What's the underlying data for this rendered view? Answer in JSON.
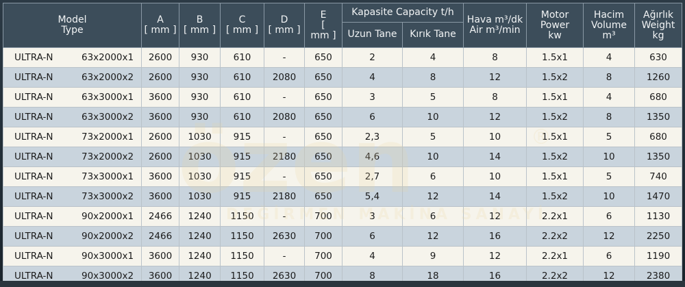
{
  "header": {
    "model_type": "Model\nType",
    "a": "A\n[ mm ]",
    "b": "B\n[ mm ]",
    "c": "C\n[ mm ]",
    "d": "D\n[ mm ]",
    "e": "E\n[\nmm ]",
    "capacity": "Kapasite Capacity t/h",
    "capacity_whole": "Uzun Tane",
    "capacity_broken": "Kırık Tane",
    "air": "Hava m³/dk\nAir m³/min",
    "motor": "Motor\nPower\nkw",
    "volume": "Hacim\nVolume\nm³",
    "weight": "Ağırlık\nWeight\nkg"
  },
  "rows": [
    {
      "model": "ULTRA-N",
      "type": "63x2000x1",
      "a": "2600",
      "b": "930",
      "c": "610",
      "d": "-",
      "e": "650",
      "cap1": "2",
      "cap2": "4",
      "air": "8",
      "motor": "1.5x1",
      "vol": "4",
      "weight": "630"
    },
    {
      "model": "ULTRA-N",
      "type": "63x2000x2",
      "a": "2600",
      "b": "930",
      "c": "610",
      "d": "2080",
      "e": "650",
      "cap1": "4",
      "cap2": "8",
      "air": "12",
      "motor": "1.5x2",
      "vol": "8",
      "weight": "1260"
    },
    {
      "model": "ULTRA-N",
      "type": "63x3000x1",
      "a": "3600",
      "b": "930",
      "c": "610",
      "d": "-",
      "e": "650",
      "cap1": "3",
      "cap2": "5",
      "air": "8",
      "motor": "1.5x1",
      "vol": "4",
      "weight": "680"
    },
    {
      "model": "ULTRA-N",
      "type": "63x3000x2",
      "a": "3600",
      "b": "930",
      "c": "610",
      "d": "2080",
      "e": "650",
      "cap1": "6",
      "cap2": "10",
      "air": "12",
      "motor": "1.5x2",
      "vol": "8",
      "weight": "1350"
    },
    {
      "model": "ULTRA-N",
      "type": "73x2000x1",
      "a": "2600",
      "b": "1030",
      "c": "915",
      "d": "-",
      "e": "650",
      "cap1": "2,3",
      "cap2": "5",
      "air": "10",
      "motor": "1.5x1",
      "vol": "5",
      "weight": "680"
    },
    {
      "model": "ULTRA-N",
      "type": "73x2000x2",
      "a": "2600",
      "b": "1030",
      "c": "915",
      "d": "2180",
      "e": "650",
      "cap1": "4,6",
      "cap2": "10",
      "air": "14",
      "motor": "1.5x2",
      "vol": "10",
      "weight": "1350"
    },
    {
      "model": "ULTRA-N",
      "type": "73x3000x1",
      "a": "3600",
      "b": "1030",
      "c": "915",
      "d": "-",
      "e": "650",
      "cap1": "2,7",
      "cap2": "6",
      "air": "10",
      "motor": "1.5x1",
      "vol": "5",
      "weight": "740"
    },
    {
      "model": "ULTRA-N",
      "type": "73x3000x2",
      "a": "3600",
      "b": "1030",
      "c": "915",
      "d": "2180",
      "e": "650",
      "cap1": "5,4",
      "cap2": "12",
      "air": "14",
      "motor": "1.5x2",
      "vol": "10",
      "weight": "1470"
    },
    {
      "model": "ULTRA-N",
      "type": "90x2000x1",
      "a": "2466",
      "b": "1240",
      "c": "1150",
      "d": "-",
      "e": "700",
      "cap1": "3",
      "cap2": "6",
      "air": "12",
      "motor": "2.2x1",
      "vol": "6",
      "weight": "1130"
    },
    {
      "model": "ULTRA-N",
      "type": "90x2000x2",
      "a": "2466",
      "b": "1240",
      "c": "1150",
      "d": "2630",
      "e": "700",
      "cap1": "6",
      "cap2": "12",
      "air": "16",
      "motor": "2.2x2",
      "vol": "12",
      "weight": "2250"
    },
    {
      "model": "ULTRA-N",
      "type": "90x3000x1",
      "a": "3600",
      "b": "1240",
      "c": "1150",
      "d": "-",
      "e": "700",
      "cap1": "4",
      "cap2": "9",
      "air": "12",
      "motor": "2.2x1",
      "vol": "6",
      "weight": "1190"
    },
    {
      "model": "ULTRA-N",
      "type": "90x3000x2",
      "a": "3600",
      "b": "1240",
      "c": "1150",
      "d": "2630",
      "e": "700",
      "cap1": "8",
      "cap2": "18",
      "air": "16",
      "motor": "2.2x2",
      "vol": "12",
      "weight": "2380"
    }
  ],
  "watermark": {
    "logo_text": "özen",
    "tagline": "DEĞİRMEN MAKİNA SANAYİ",
    "registered": "®",
    "color": "#e8c46a"
  },
  "colors": {
    "header_bg": "#3c4d5a",
    "row_light": "#f6f4ec",
    "row_dark": "#c9d4dd"
  }
}
